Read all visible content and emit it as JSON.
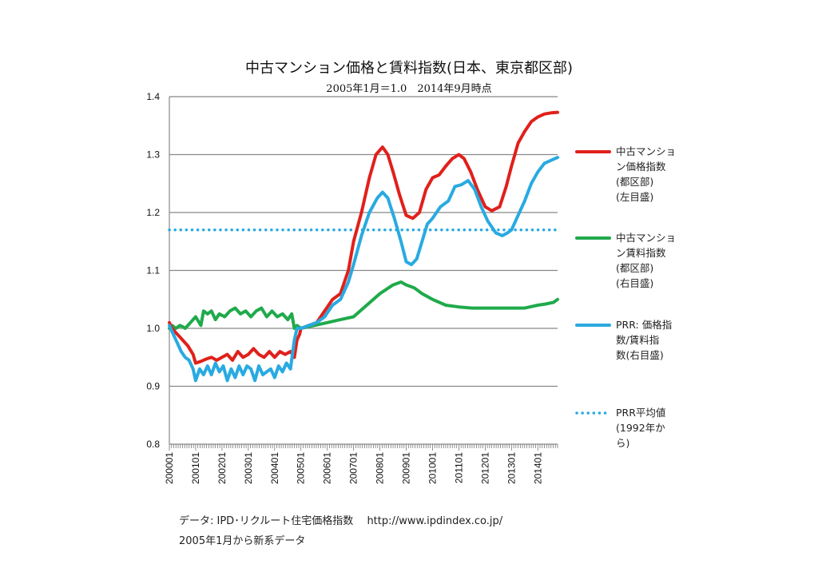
{
  "chart_data": {
    "type": "line",
    "title": "中古マンション価格と賃料指数(日本、東京都区部)",
    "subtitle": "2005年1月＝1.0　2014年9月時点",
    "ylim": [
      0.8,
      1.4
    ],
    "y_ticks": [
      "0.8",
      "0.9",
      "1.0",
      "1.1",
      "1.2",
      "1.3",
      "1.4"
    ],
    "x_range": [
      2000.0,
      2014.75
    ],
    "x_tick_labels": [
      "200001",
      "200101",
      "200201",
      "200301",
      "200401",
      "200501",
      "200601",
      "200701",
      "200801",
      "200901",
      "201001",
      "201101",
      "201201",
      "201301",
      "201401"
    ],
    "grid": true,
    "series": [
      {
        "name": "中古マンション価格指数(都区部)(左目盛)",
        "legend_lines": [
          "中古マンショ",
          "ン価格指数",
          "(都区部)",
          "(左目盛)"
        ],
        "color": "#e0201b",
        "x": [
          2000.0,
          2000.1,
          2000.3,
          2000.5,
          2000.7,
          2000.9,
          2001.0,
          2001.2,
          2001.4,
          2001.6,
          2001.8,
          2002.0,
          2002.2,
          2002.4,
          2002.6,
          2002.8,
          2003.0,
          2003.2,
          2003.4,
          2003.6,
          2003.8,
          2004.0,
          2004.2,
          2004.4,
          2004.6,
          2004.75,
          2004.85,
          2004.95,
          2005.0,
          2005.3,
          2005.6,
          2005.9,
          2006.2,
          2006.5,
          2006.8,
          2007.0,
          2007.3,
          2007.6,
          2007.85,
          2008.1,
          2008.3,
          2008.5,
          2008.75,
          2009.0,
          2009.25,
          2009.5,
          2009.75,
          2010.0,
          2010.25,
          2010.5,
          2010.75,
          2011.0,
          2011.2,
          2011.45,
          2011.7,
          2012.0,
          2012.25,
          2012.55,
          2012.8,
          2013.0,
          2013.25,
          2013.5,
          2013.75,
          2014.0,
          2014.25,
          2014.5,
          2014.75
        ],
        "values": [
          1.01,
          1.0,
          0.99,
          0.98,
          0.97,
          0.955,
          0.94,
          0.943,
          0.947,
          0.95,
          0.945,
          0.95,
          0.955,
          0.945,
          0.96,
          0.95,
          0.955,
          0.965,
          0.955,
          0.95,
          0.96,
          0.95,
          0.96,
          0.955,
          0.96,
          0.95,
          0.98,
          0.99,
          1.0,
          1.005,
          1.01,
          1.03,
          1.05,
          1.06,
          1.1,
          1.15,
          1.2,
          1.26,
          1.3,
          1.313,
          1.3,
          1.27,
          1.23,
          1.195,
          1.19,
          1.2,
          1.24,
          1.26,
          1.265,
          1.28,
          1.293,
          1.3,
          1.293,
          1.27,
          1.24,
          1.21,
          1.203,
          1.21,
          1.245,
          1.28,
          1.32,
          1.34,
          1.357,
          1.365,
          1.37,
          1.372,
          1.373
        ]
      },
      {
        "name": "中古マンション賃料指数(都区部)(右目盛)",
        "legend_lines": [
          "中古マンショ",
          "ン賃料指数",
          "(都区部)",
          "(右目盛)"
        ],
        "color": "#1faa4b",
        "x": [
          2000.0,
          2000.1,
          2000.25,
          2000.4,
          2000.5,
          2000.6,
          2000.8,
          2001.0,
          2001.2,
          2001.3,
          2001.45,
          2001.6,
          2001.75,
          2001.9,
          2002.1,
          2002.3,
          2002.5,
          2002.7,
          2002.9,
          2003.1,
          2003.3,
          2003.5,
          2003.7,
          2003.9,
          2004.1,
          2004.3,
          2004.5,
          2004.65,
          2004.75,
          2004.85,
          2005.0,
          2005.5,
          2006.0,
          2006.5,
          2007.0,
          2007.5,
          2008.0,
          2008.5,
          2008.8,
          2009.0,
          2009.3,
          2009.6,
          2010.0,
          2010.5,
          2011.0,
          2011.5,
          2012.0,
          2012.5,
          2013.0,
          2013.5,
          2014.0,
          2014.3,
          2014.6,
          2014.75
        ],
        "values": [
          1.0,
          1.005,
          1.0,
          1.005,
          1.003,
          1.0,
          1.01,
          1.02,
          1.005,
          1.03,
          1.025,
          1.03,
          1.015,
          1.025,
          1.02,
          1.03,
          1.035,
          1.025,
          1.03,
          1.02,
          1.03,
          1.035,
          1.02,
          1.03,
          1.02,
          1.025,
          1.015,
          1.025,
          1.0,
          1.005,
          1.0,
          1.005,
          1.01,
          1.015,
          1.02,
          1.04,
          1.06,
          1.075,
          1.08,
          1.075,
          1.07,
          1.06,
          1.05,
          1.04,
          1.037,
          1.035,
          1.035,
          1.035,
          1.035,
          1.035,
          1.04,
          1.042,
          1.045,
          1.05
        ]
      },
      {
        "name": "PRR: 価格指数/賃料指数(右目盛)",
        "legend_lines": [
          "PRR: 価格指",
          "数/賃料指",
          "数(右目盛)"
        ],
        "color": "#29aae1",
        "x": [
          2000.0,
          2000.15,
          2000.3,
          2000.45,
          2000.6,
          2000.75,
          2000.9,
          2001.0,
          2001.15,
          2001.3,
          2001.45,
          2001.6,
          2001.75,
          2001.9,
          2002.05,
          2002.2,
          2002.35,
          2002.5,
          2002.65,
          2002.8,
          2002.95,
          2003.1,
          2003.25,
          2003.4,
          2003.55,
          2003.7,
          2003.85,
          2004.0,
          2004.15,
          2004.3,
          2004.45,
          2004.6,
          2004.75,
          2004.85,
          2005.0,
          2005.3,
          2005.6,
          2005.9,
          2006.2,
          2006.5,
          2006.8,
          2007.0,
          2007.3,
          2007.6,
          2007.9,
          2008.1,
          2008.3,
          2008.55,
          2008.8,
          2009.0,
          2009.2,
          2009.4,
          2009.6,
          2009.8,
          2010.0,
          2010.3,
          2010.6,
          2010.85,
          2011.1,
          2011.35,
          2011.6,
          2011.85,
          2012.1,
          2012.4,
          2012.65,
          2012.85,
          2013.0,
          2013.25,
          2013.5,
          2013.75,
          2014.0,
          2014.25,
          2014.5,
          2014.75
        ],
        "values": [
          1.005,
          0.99,
          0.975,
          0.96,
          0.95,
          0.945,
          0.93,
          0.91,
          0.93,
          0.92,
          0.935,
          0.92,
          0.94,
          0.925,
          0.935,
          0.91,
          0.93,
          0.915,
          0.935,
          0.92,
          0.935,
          0.93,
          0.91,
          0.935,
          0.92,
          0.925,
          0.93,
          0.915,
          0.935,
          0.925,
          0.94,
          0.93,
          0.98,
          1.0,
          1.0,
          1.005,
          1.01,
          1.02,
          1.04,
          1.05,
          1.08,
          1.11,
          1.16,
          1.2,
          1.225,
          1.235,
          1.225,
          1.19,
          1.15,
          1.115,
          1.11,
          1.12,
          1.15,
          1.18,
          1.19,
          1.21,
          1.22,
          1.245,
          1.248,
          1.255,
          1.24,
          1.21,
          1.185,
          1.165,
          1.16,
          1.165,
          1.17,
          1.195,
          1.22,
          1.25,
          1.27,
          1.285,
          1.29,
          1.295
        ]
      },
      {
        "name": "PRR平均値(1992年から)",
        "legend_lines": [
          "PRR平均値",
          "(1992年か",
          "ら)"
        ],
        "color": "#29aae1",
        "dashed": true,
        "x": [
          2000.0,
          2014.75
        ],
        "values": [
          1.17,
          1.17
        ]
      }
    ]
  },
  "notes": {
    "source": "データ: IPD･リクルート住宅価格指数　 http://www.ipdindex.co.jp/",
    "remark": "2005年1月から新系データ"
  }
}
